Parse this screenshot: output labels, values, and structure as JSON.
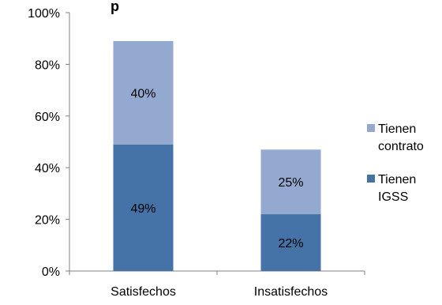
{
  "chart_data": {
    "type": "bar",
    "stacked": true,
    "title": "p",
    "categories": [
      "Satisfechos",
      "Insatisfechos"
    ],
    "series": [
      {
        "name": "Tienen IGSS",
        "legend_lines": [
          "Tienen",
          "IGSS"
        ],
        "values": [
          49,
          22
        ],
        "labels": [
          "49%",
          "22%"
        ],
        "color": "#4572A7"
      },
      {
        "name": "Tienen contrato",
        "legend_lines": [
          "Tienen",
          "contrato"
        ],
        "values": [
          40,
          25
        ],
        "labels": [
          "40%",
          "25%"
        ],
        "color": "#93A9CF"
      }
    ],
    "ylim": [
      0,
      100
    ],
    "yticks": [
      "0%",
      "20%",
      "40%",
      "60%",
      "80%",
      "100%"
    ],
    "ytick_values": [
      0,
      20,
      40,
      60,
      80,
      100
    ],
    "legend": "right",
    "grid": false
  }
}
